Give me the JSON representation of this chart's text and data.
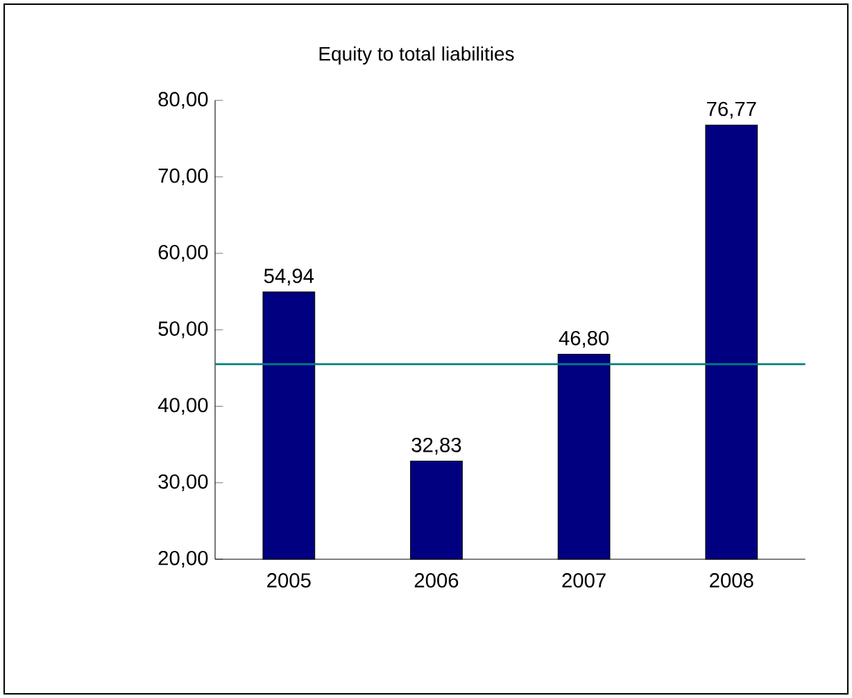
{
  "chart_data": {
    "type": "bar",
    "title": "Equity to total liabilities",
    "categories": [
      "2005",
      "2006",
      "2007",
      "2008"
    ],
    "values": [
      54.94,
      32.83,
      46.8,
      76.77
    ],
    "value_labels": [
      "54,94",
      "32,83",
      "46,80",
      "76,77"
    ],
    "color": "#000080",
    "ylim": [
      20,
      80
    ],
    "yticks": [
      {
        "value": 20,
        "label": "20,00"
      },
      {
        "value": 30,
        "label": "30,00"
      },
      {
        "value": 40,
        "label": "40,00"
      },
      {
        "value": 50,
        "label": "50,00"
      },
      {
        "value": 60,
        "label": "60,00"
      },
      {
        "value": 70,
        "label": "70,00"
      },
      {
        "value": 80,
        "label": "80,00"
      }
    ],
    "ref_lines": [
      {
        "axis": "y",
        "value": 45.5,
        "color": "#008080"
      }
    ],
    "grid": false
  }
}
